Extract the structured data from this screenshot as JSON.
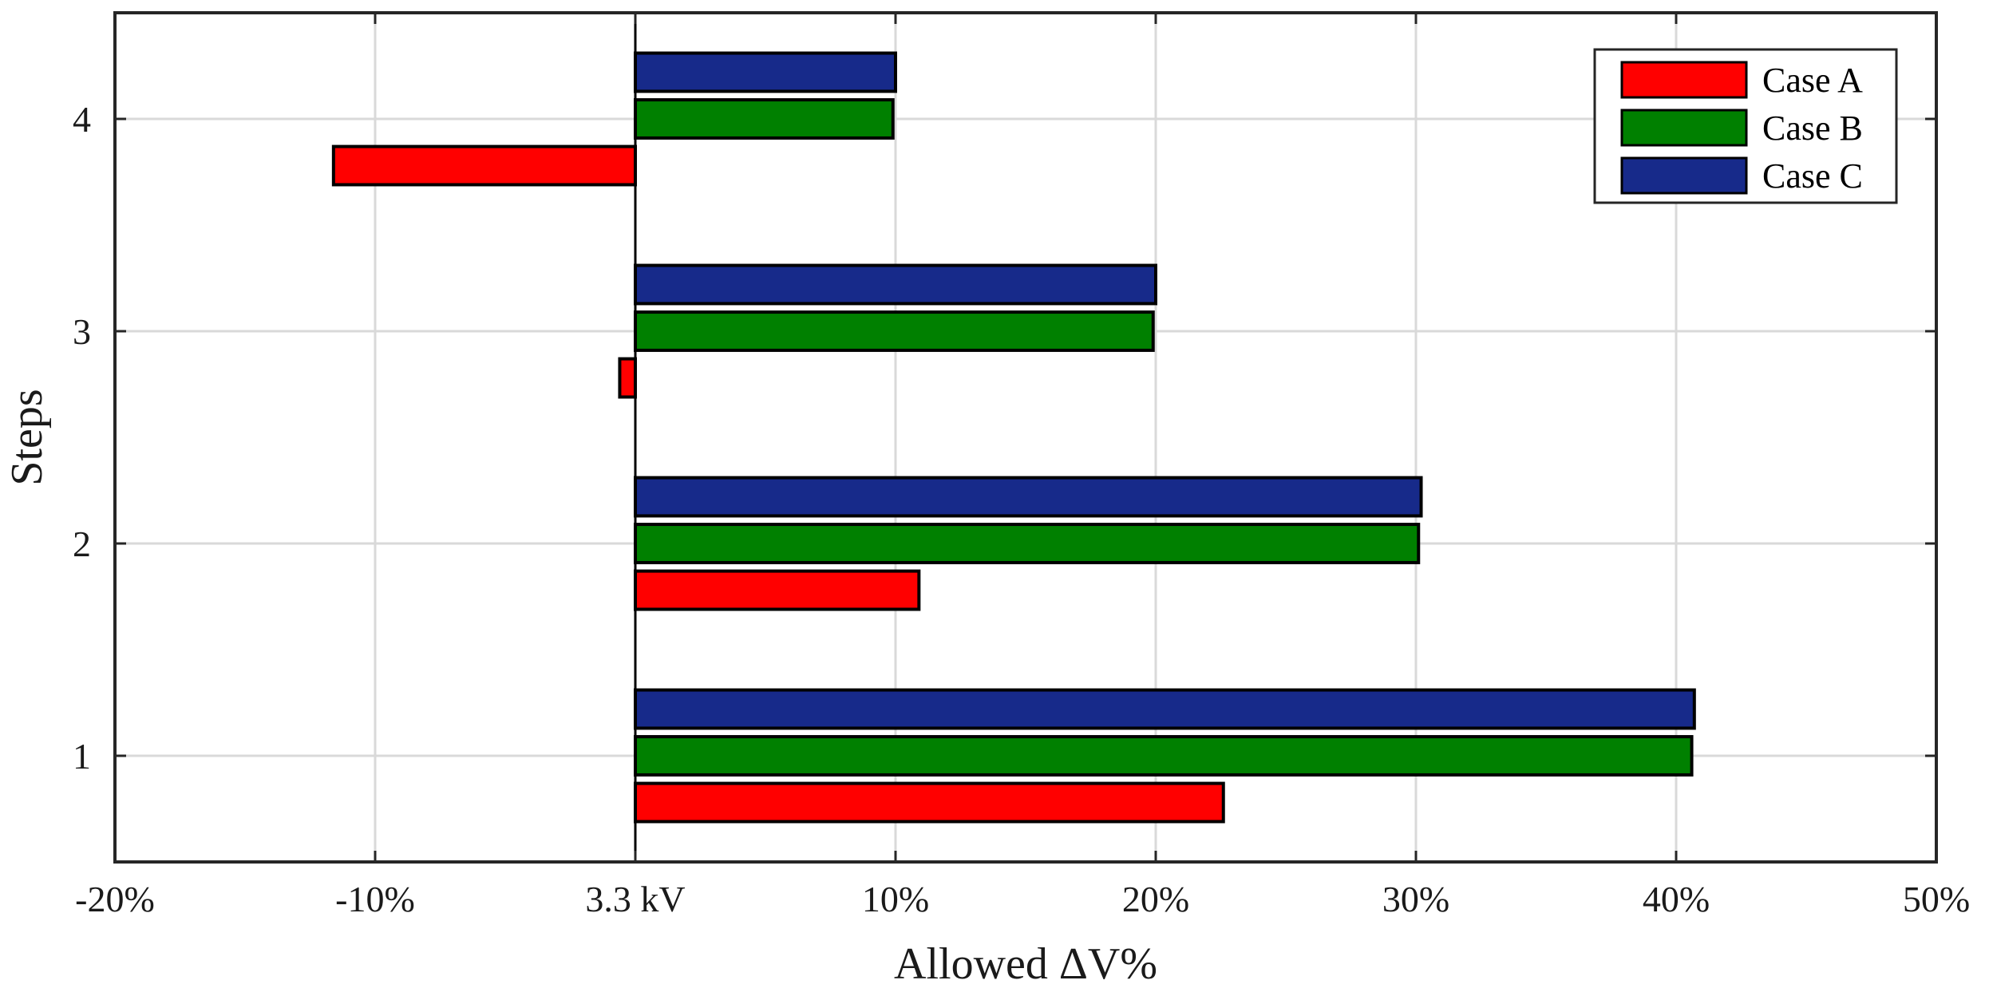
{
  "chart_data": {
    "type": "bar",
    "orientation": "horizontal",
    "title": "",
    "xlabel": "Allowed ΔV%",
    "ylabel": "Steps",
    "categories": [
      "1",
      "2",
      "3",
      "4"
    ],
    "xlim": [
      -20,
      50
    ],
    "ylim": [
      0.5,
      4.5
    ],
    "xticks": [
      -20,
      -10,
      0,
      10,
      20,
      30,
      40,
      50
    ],
    "xtick_labels": [
      "-20%",
      "-10%",
      "3.3 kV",
      "10%",
      "20%",
      "30%",
      "40%",
      "50%"
    ],
    "yticks": [
      1,
      2,
      3,
      4
    ],
    "ytick_labels": [
      "1",
      "2",
      "3",
      "4"
    ],
    "grid": true,
    "legend_position": "top-right",
    "series": [
      {
        "name": "Case A",
        "color": "#ff0000",
        "values": [
          22.6,
          10.9,
          -0.6,
          -11.6
        ]
      },
      {
        "name": "Case B",
        "color": "#008000",
        "values": [
          40.6,
          30.1,
          19.9,
          9.9
        ]
      },
      {
        "name": "Case C",
        "color": "#172a8a",
        "values": [
          40.7,
          30.2,
          20.0,
          10.0
        ]
      }
    ]
  }
}
